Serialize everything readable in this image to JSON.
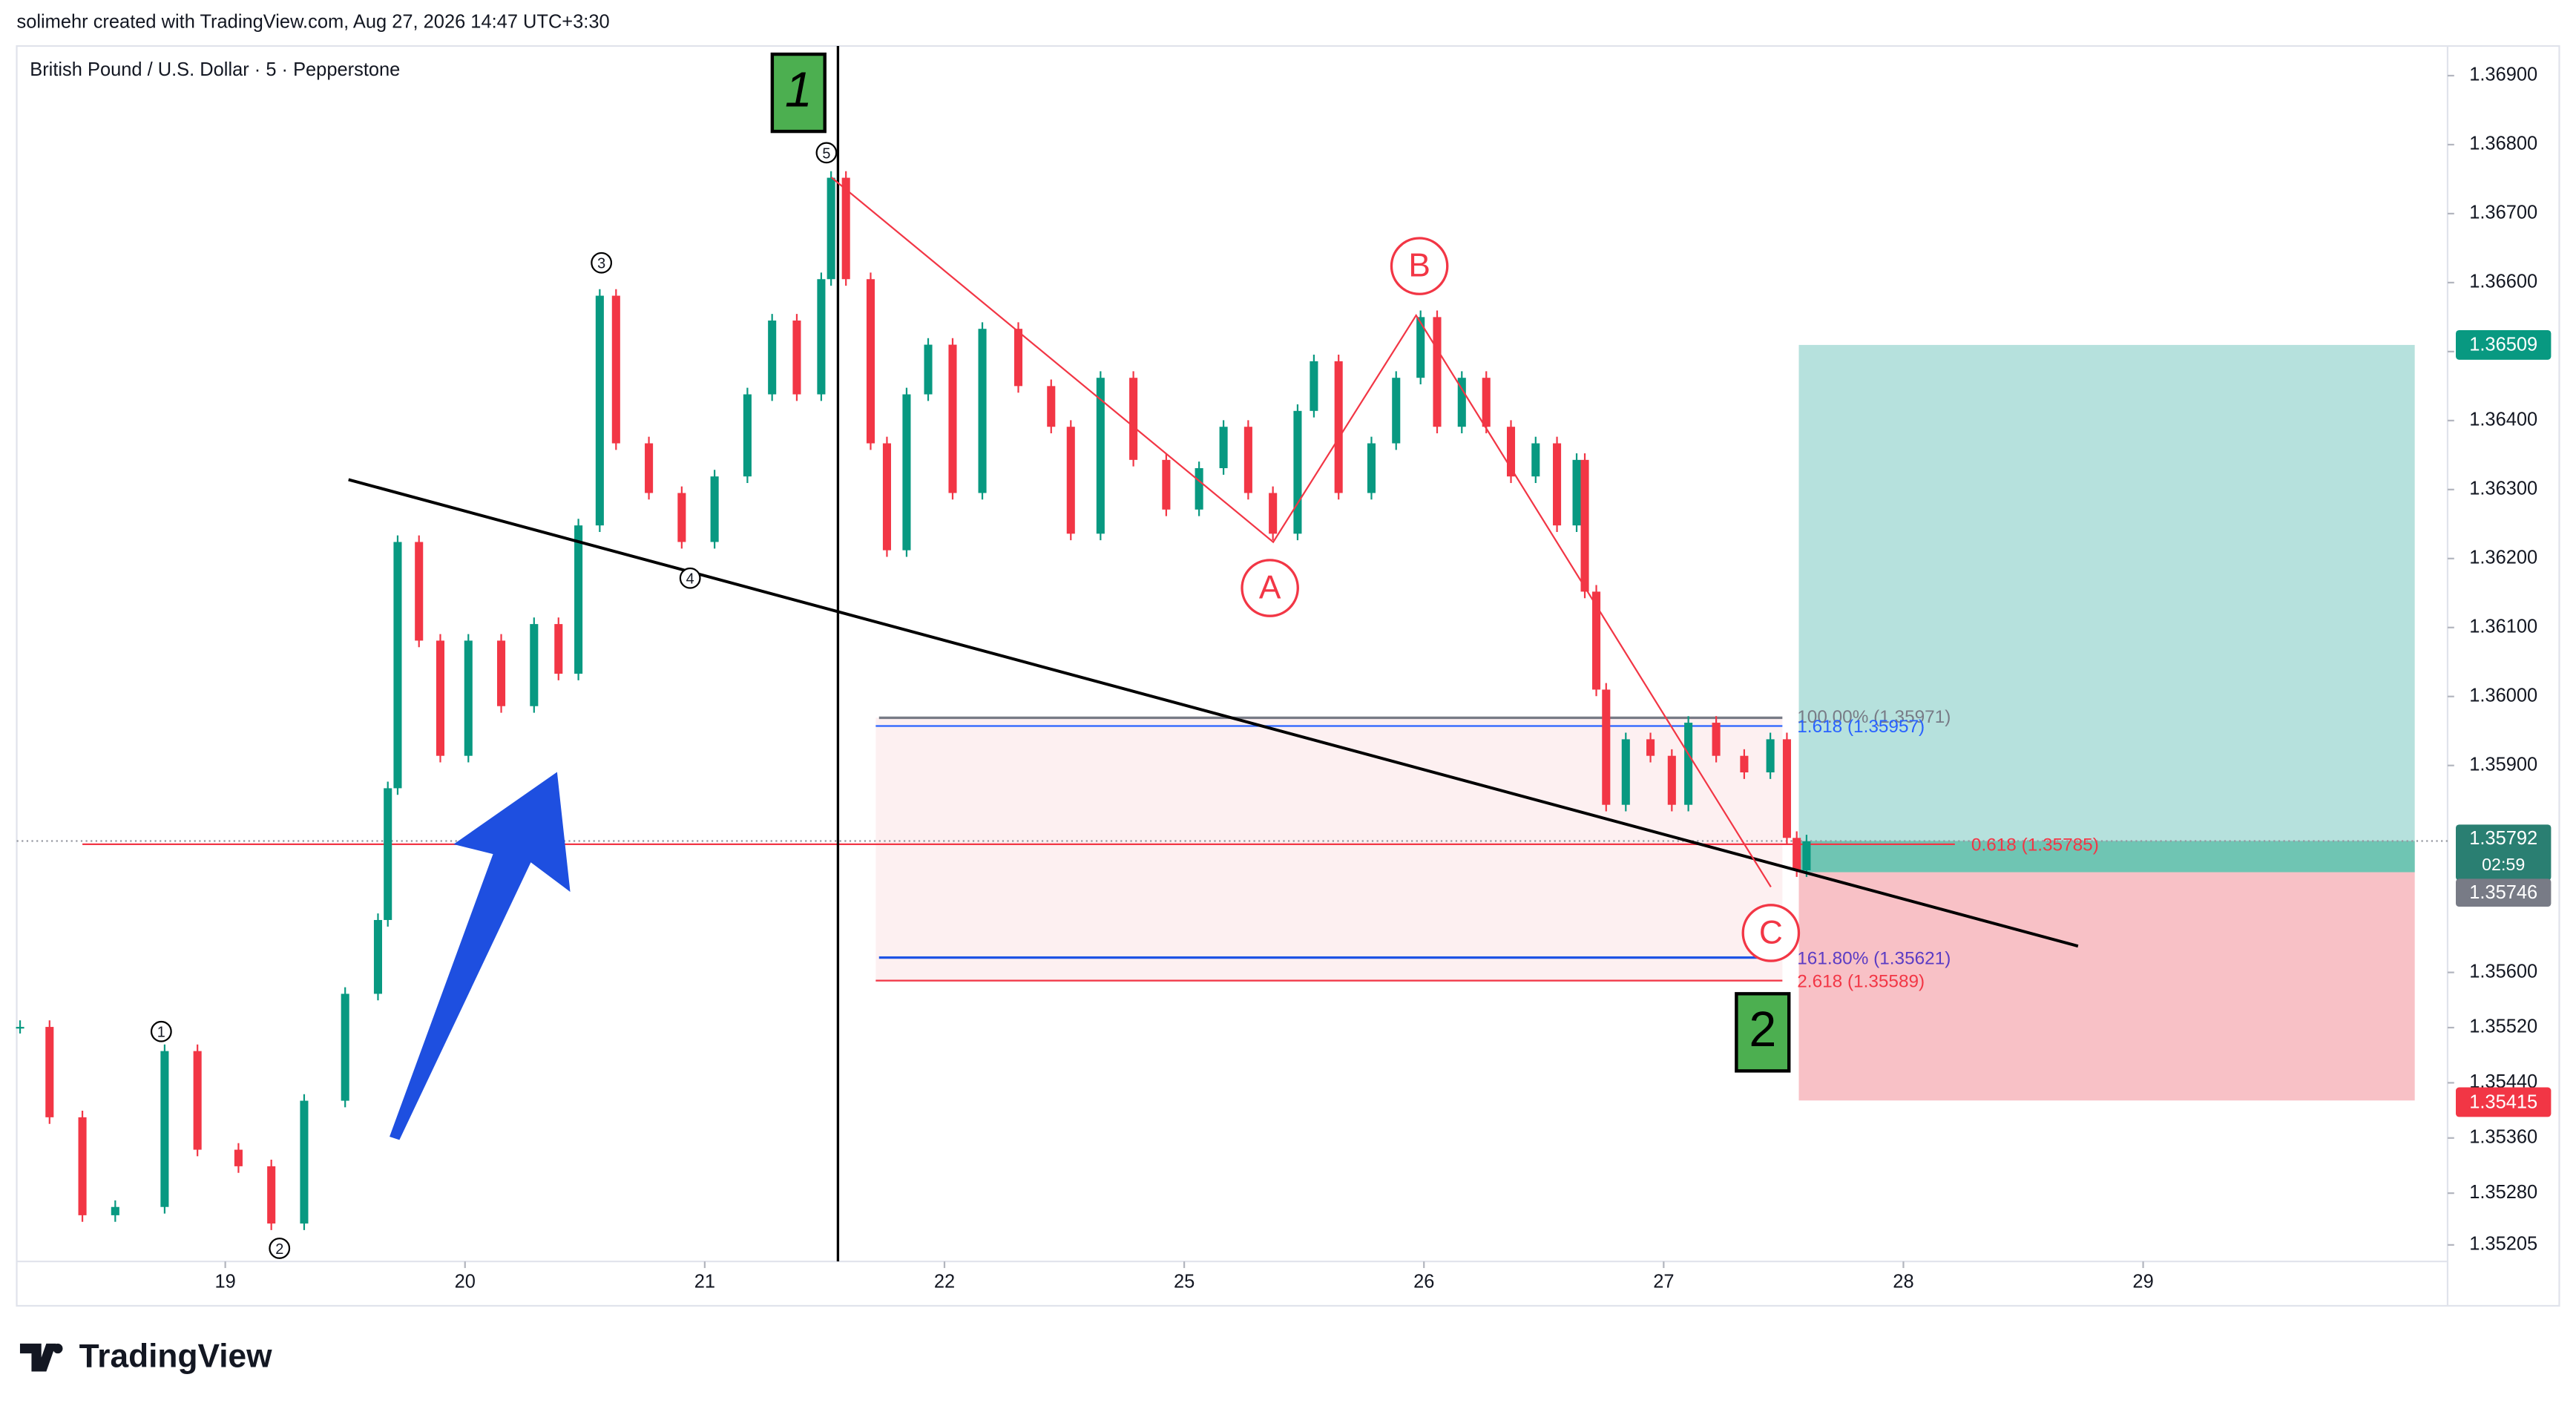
{
  "header": {
    "credit": "solimehr created with TradingView.com, Aug 27, 2026 14:47 UTC+3:30",
    "logo": "TradingView"
  },
  "chart_data": {
    "type": "candles",
    "title": "British Pound / U.S. Dollar · 5 · Pepperstone",
    "up_color": "#089981",
    "down_color": "#f23645",
    "x": [
      0.144,
      0.267,
      0.404,
      0.541,
      0.747,
      0.884,
      1.055,
      1.192,
      1.329,
      1.5,
      1.637,
      1.678,
      1.719,
      1.808,
      1.897,
      2.014,
      2.151,
      2.288,
      2.39,
      2.473,
      2.562,
      2.63,
      2.767,
      2.904,
      3.041,
      3.178,
      3.281,
      3.384,
      3.486,
      3.527,
      3.589,
      3.692,
      3.76,
      3.842,
      3.932,
      4.034,
      4.158,
      4.308,
      4.445,
      4.527,
      4.651,
      4.788,
      4.925,
      5.062,
      5.164,
      5.267,
      5.37,
      5.473,
      5.541,
      5.644,
      5.781,
      5.884,
      5.986,
      6.055,
      6.158,
      6.26,
      6.363,
      6.466,
      6.555,
      6.637,
      6.671,
      6.719,
      6.76,
      6.842,
      6.945,
      7.034,
      7.103,
      7.219,
      7.336,
      7.445,
      7.514,
      7.555,
      7.596
    ],
    "values": [
      1.35521,
      1.3539,
      1.35248,
      1.3526,
      1.35486,
      1.35343,
      1.35319,
      1.35236,
      1.35414,
      1.35569,
      1.35676,
      1.35867,
      1.36224,
      1.36081,
      1.35914,
      1.36081,
      1.35986,
      1.36105,
      1.36033,
      1.36248,
      1.36581,
      1.36367,
      1.36295,
      1.36224,
      1.36319,
      1.36438,
      1.36545,
      1.36438,
      1.36605,
      1.36752,
      1.36605,
      1.36367,
      1.36212,
      1.36438,
      1.3651,
      1.36295,
      1.36533,
      1.3645,
      1.36391,
      1.36236,
      1.36462,
      1.36343,
      1.36271,
      1.36331,
      1.36391,
      1.36295,
      1.36236,
      1.36414,
      1.36486,
      1.36295,
      1.36367,
      1.36462,
      1.3655,
      1.36391,
      1.36462,
      1.36391,
      1.36319,
      1.36367,
      1.36248,
      1.36343,
      1.36152,
      1.3601,
      1.35843,
      1.35938,
      1.35914,
      1.35843,
      1.35962,
      1.35914,
      1.3589,
      1.35938,
      1.35795,
      1.35748,
      1.3579
    ],
    "xlim": [
      0.13,
      10.27
    ],
    "xticks": [
      {
        "value": 1,
        "label": "19"
      },
      {
        "value": 2,
        "label": "20"
      },
      {
        "value": 3,
        "label": "21"
      },
      {
        "value": 4,
        "label": "22"
      },
      {
        "value": 5,
        "label": "25"
      },
      {
        "value": 6,
        "label": "26"
      },
      {
        "value": 7,
        "label": "27"
      },
      {
        "value": 8,
        "label": "28"
      },
      {
        "value": 9,
        "label": "29"
      }
    ],
    "ylim": [
      1.35181,
      1.36943
    ],
    "yticks": [
      {
        "value": 1.369,
        "label": "1.36900"
      },
      {
        "value": 1.368,
        "label": "1.36800"
      },
      {
        "value": 1.367,
        "label": "1.36700"
      },
      {
        "value": 1.366,
        "label": "1.36600"
      },
      {
        "value": 1.365,
        "label": "1.36500"
      },
      {
        "value": 1.364,
        "label": "1.36400"
      },
      {
        "value": 1.363,
        "label": "1.36300"
      },
      {
        "value": 1.362,
        "label": "1.36200"
      },
      {
        "value": 1.361,
        "label": "1.36100"
      },
      {
        "value": 1.36,
        "label": "1.36000"
      },
      {
        "value": 1.359,
        "label": "1.35900"
      },
      {
        "value": 1.356,
        "label": "1.35600"
      },
      {
        "value": 1.3552,
        "label": "1.35520"
      },
      {
        "value": 1.3544,
        "label": "1.35440"
      },
      {
        "value": 1.3536,
        "label": "1.35360"
      },
      {
        "value": 1.3528,
        "label": "1.35280"
      },
      {
        "value": 1.35205,
        "label": "1.35205"
      }
    ],
    "price_badges": {
      "target": "1.36509",
      "last": "1.35792",
      "countdown": "02:59",
      "entry": "1.35746",
      "stop": "1.35415"
    },
    "fib_labels": [
      "100.00% (1.35971)",
      "1.618 (1.35957)",
      "0.618 (1.35785)",
      "161.80% (1.35621)",
      "2.618 (1.35589)"
    ],
    "wave_labels": [
      "1",
      "2",
      "3",
      "4",
      "5"
    ],
    "abc_labels": [
      "A",
      "B",
      "C"
    ],
    "degree_labels": [
      "1",
      "2"
    ]
  }
}
